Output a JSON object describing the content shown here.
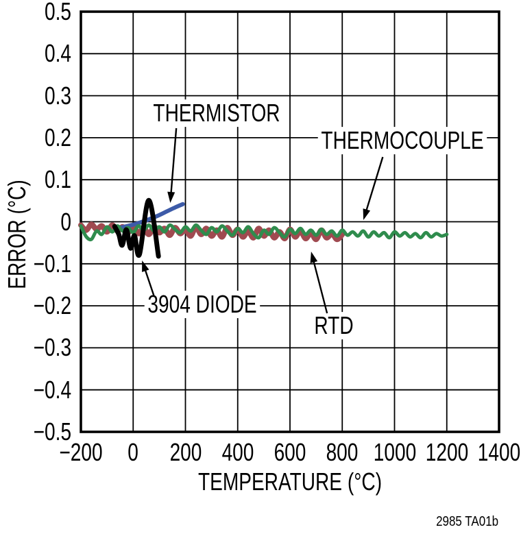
{
  "figure": {
    "caption": "2985 TA01b"
  },
  "chart_data": {
    "type": "line",
    "title": "",
    "xlabel": "TEMPERATURE (°C)",
    "ylabel": "ERROR (°C)",
    "xlim": [
      -200,
      1400
    ],
    "ylim": [
      -0.5,
      0.5
    ],
    "grid": true,
    "frame_color": "#000000",
    "x_ticks": [
      -200,
      0,
      200,
      400,
      600,
      800,
      1000,
      1200,
      1400
    ],
    "x_tick_labels": [
      "−200",
      "0",
      "200",
      "400",
      "600",
      "800",
      "1000",
      "1200",
      "1400"
    ],
    "y_ticks": [
      0.5,
      0.4,
      0.3,
      0.2,
      0.1,
      0,
      -0.1,
      -0.2,
      -0.3,
      -0.4,
      -0.5
    ],
    "y_tick_labels": [
      "0.5",
      "0.4",
      "0.3",
      "0.2",
      "0.1",
      "0",
      "−0.1",
      "−0.2",
      "−0.3",
      "−0.4",
      "−0.5"
    ],
    "series": [
      {
        "name": "RTD",
        "color": "#A04A50",
        "width": 8,
        "x_start": -200,
        "x_step": 20,
        "values": [
          -0.008,
          -0.02,
          -0.006,
          -0.018,
          -0.01,
          -0.024,
          -0.008,
          -0.022,
          -0.012,
          -0.026,
          -0.01,
          -0.028,
          -0.014,
          -0.03,
          -0.012,
          -0.026,
          -0.016,
          -0.032,
          -0.014,
          -0.028,
          -0.018,
          -0.034,
          -0.012,
          -0.03,
          -0.016,
          -0.034,
          -0.02,
          -0.036,
          -0.014,
          -0.032,
          -0.018,
          -0.036,
          -0.022,
          -0.038,
          -0.016,
          -0.034,
          -0.02,
          -0.038,
          -0.024,
          -0.04,
          -0.018,
          -0.036,
          -0.022,
          -0.04,
          -0.026,
          -0.042,
          -0.02,
          -0.038,
          -0.028,
          -0.042,
          -0.03
        ]
      },
      {
        "name": "THERMISTOR",
        "color": "#3D5BA8",
        "width": 6,
        "x": [
          -50,
          -20,
          10,
          40,
          70,
          100,
          130,
          160,
          190
        ],
        "values": [
          -0.014,
          -0.01,
          -0.005,
          0.001,
          0.008,
          0.016,
          0.025,
          0.034,
          0.042
        ]
      },
      {
        "name": "THERMOCOUPLE",
        "color": "#2F8C4D",
        "width": 5,
        "x_start": -200,
        "x_step": 20,
        "values": [
          -0.01,
          -0.035,
          -0.042,
          -0.022,
          -0.03,
          -0.012,
          -0.024,
          -0.01,
          -0.022,
          -0.014,
          -0.026,
          -0.01,
          -0.02,
          -0.008,
          -0.022,
          -0.012,
          -0.024,
          -0.008,
          -0.018,
          -0.026,
          -0.012,
          -0.022,
          -0.008,
          -0.02,
          -0.03,
          -0.014,
          -0.024,
          -0.01,
          -0.022,
          -0.032,
          -0.016,
          -0.026,
          -0.012,
          -0.028,
          -0.038,
          -0.02,
          -0.03,
          -0.014,
          -0.026,
          -0.036,
          -0.018,
          -0.028,
          -0.016,
          -0.03,
          -0.02,
          -0.032,
          -0.018,
          -0.03,
          -0.022,
          -0.034,
          -0.02,
          -0.032,
          -0.024,
          -0.034,
          -0.022,
          -0.036,
          -0.024,
          -0.034,
          -0.026,
          -0.038,
          -0.024,
          -0.034,
          -0.026,
          -0.036,
          -0.028,
          -0.038,
          -0.026,
          -0.036,
          -0.028,
          -0.034,
          -0.03
        ]
      },
      {
        "name": "3904 DIODE",
        "color": "#000000",
        "width": 7,
        "x": [
          -71,
          -55,
          -42,
          -26,
          -10,
          5,
          24,
          60,
          97
        ],
        "values": [
          -0.011,
          -0.03,
          -0.056,
          -0.019,
          -0.063,
          -0.033,
          -0.078,
          0.051,
          -0.082
        ]
      }
    ],
    "annotations": [
      {
        "id": "thermistor",
        "text": "THERMISTOR",
        "label_x": 320,
        "label_y": 0.2586,
        "arrow": {
          "from_x": 165,
          "from_y": 0.2227,
          "to_x": 142,
          "to_y": 0.0449
        }
      },
      {
        "id": "thermocouple",
        "text": "THERMOCOUPLE",
        "label_x": 1031,
        "label_y": 0.1933,
        "arrow": {
          "from_x": 955,
          "from_y": 0.1542,
          "to_x": 881,
          "to_y": 0.0041
        }
      },
      {
        "id": "diode",
        "text": "3904 DIODE",
        "label_x": 265,
        "label_y": -0.1965,
        "arrow": {
          "from_x": 79,
          "from_y": -0.1753,
          "to_x": 34,
          "to_y": -0.0922
        }
      },
      {
        "id": "rtd",
        "text": "RTD",
        "label_x": 769,
        "label_y": -0.2471,
        "arrow": {
          "from_x": 742,
          "from_y": -0.2178,
          "to_x": 681,
          "to_y": -0.071
        }
      }
    ]
  }
}
